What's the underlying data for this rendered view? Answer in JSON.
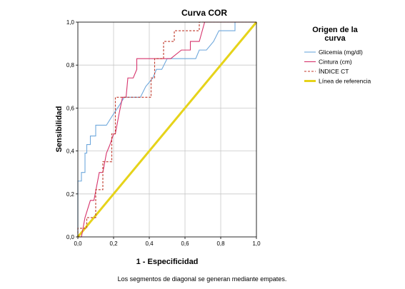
{
  "chart_data": {
    "type": "line",
    "title": "Curva COR",
    "xlabel": "1 - Especificidad",
    "ylabel": "Sensibilidad",
    "xlim": [
      0,
      1
    ],
    "ylim": [
      0,
      1
    ],
    "x_ticks": [
      "0,0",
      "0,2",
      "0,4",
      "0,6",
      "0,8",
      "1,0"
    ],
    "y_ticks": [
      "0,0",
      "0,2",
      "0,4",
      "0,6",
      "0,8",
      "1,0"
    ],
    "grid": true,
    "legend_title": "Origen de la curva",
    "legend_position": "right",
    "footnote": "Los segmentos de diagonal se generan mediante empates.",
    "series": [
      {
        "name": "Glicemia (mg/dl)",
        "color": "#6fa8dc",
        "style": "solid",
        "points": [
          [
            0,
            0
          ],
          [
            0,
            0.26
          ],
          [
            0.02,
            0.26
          ],
          [
            0.02,
            0.3
          ],
          [
            0.04,
            0.3
          ],
          [
            0.04,
            0.39
          ],
          [
            0.05,
            0.39
          ],
          [
            0.05,
            0.43
          ],
          [
            0.07,
            0.43
          ],
          [
            0.07,
            0.47
          ],
          [
            0.1,
            0.47
          ],
          [
            0.1,
            0.52
          ],
          [
            0.16,
            0.52
          ],
          [
            0.19,
            0.56
          ],
          [
            0.23,
            0.61
          ],
          [
            0.26,
            0.65
          ],
          [
            0.35,
            0.65
          ],
          [
            0.38,
            0.7
          ],
          [
            0.42,
            0.74
          ],
          [
            0.44,
            0.78
          ],
          [
            0.47,
            0.78
          ],
          [
            0.5,
            0.83
          ],
          [
            0.66,
            0.83
          ],
          [
            0.68,
            0.87
          ],
          [
            0.72,
            0.87
          ],
          [
            0.76,
            0.91
          ],
          [
            0.79,
            0.96
          ],
          [
            0.88,
            0.96
          ],
          [
            0.88,
            1
          ],
          [
            1,
            1
          ]
        ]
      },
      {
        "name": "Cintura (cm)",
        "color": "#d6336c",
        "style": "solid",
        "points": [
          [
            0,
            0
          ],
          [
            0.02,
            0
          ],
          [
            0.04,
            0.09
          ],
          [
            0.07,
            0.17
          ],
          [
            0.09,
            0.17
          ],
          [
            0.12,
            0.3
          ],
          [
            0.14,
            0.3
          ],
          [
            0.16,
            0.39
          ],
          [
            0.18,
            0.43
          ],
          [
            0.2,
            0.48
          ],
          [
            0.21,
            0.48
          ],
          [
            0.23,
            0.57
          ],
          [
            0.25,
            0.65
          ],
          [
            0.27,
            0.65
          ],
          [
            0.28,
            0.74
          ],
          [
            0.31,
            0.74
          ],
          [
            0.33,
            0.78
          ],
          [
            0.33,
            0.83
          ],
          [
            0.52,
            0.83
          ],
          [
            0.58,
            0.87
          ],
          [
            0.63,
            0.87
          ],
          [
            0.63,
            0.91
          ],
          [
            0.68,
            0.91
          ],
          [
            0.71,
            1
          ],
          [
            1,
            1
          ]
        ]
      },
      {
        "name": "ÍNDICE CT",
        "color": "#c0392b",
        "style": "dashed",
        "points": [
          [
            0,
            0
          ],
          [
            0,
            0.04
          ],
          [
            0.05,
            0.04
          ],
          [
            0.05,
            0.09
          ],
          [
            0.1,
            0.09
          ],
          [
            0.1,
            0.22
          ],
          [
            0.14,
            0.22
          ],
          [
            0.14,
            0.35
          ],
          [
            0.19,
            0.35
          ],
          [
            0.19,
            0.48
          ],
          [
            0.21,
            0.48
          ],
          [
            0.21,
            0.65
          ],
          [
            0.41,
            0.65
          ],
          [
            0.41,
            0.74
          ],
          [
            0.43,
            0.74
          ],
          [
            0.43,
            0.83
          ],
          [
            0.48,
            0.83
          ],
          [
            0.48,
            0.91
          ],
          [
            0.54,
            0.91
          ],
          [
            0.54,
            0.96
          ],
          [
            0.68,
            0.96
          ],
          [
            0.68,
            1
          ],
          [
            1,
            1
          ]
        ]
      },
      {
        "name": "Línea de referencia",
        "color": "#e6d31a",
        "style": "solid",
        "points": [
          [
            0,
            0
          ],
          [
            1,
            1
          ]
        ]
      }
    ]
  }
}
